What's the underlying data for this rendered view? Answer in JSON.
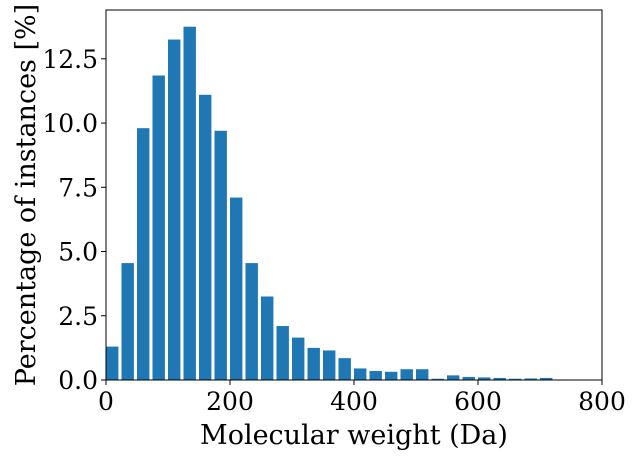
{
  "chart_data": {
    "type": "bar",
    "title": "",
    "xlabel": "Molecular weight (Da)",
    "ylabel": "Percentage of instances [%]",
    "xlim": [
      0,
      800
    ],
    "ylim": [
      0,
      14.4
    ],
    "xticks": [
      0,
      200,
      400,
      600,
      800
    ],
    "xtick_labels": [
      "0",
      "200",
      "400",
      "600",
      "800"
    ],
    "yticks": [
      0.0,
      2.5,
      5.0,
      7.5,
      10.0,
      12.5
    ],
    "ytick_labels": [
      "0.0",
      "2.5",
      "5.0",
      "7.5",
      "10.0",
      "12.5"
    ],
    "bar_width": 20,
    "color": "#1f77b4",
    "x": [
      10,
      35,
      60,
      85,
      110,
      135,
      160,
      185,
      210,
      235,
      260,
      285,
      310,
      335,
      360,
      385,
      410,
      435,
      460,
      485,
      510,
      535,
      560,
      585,
      610,
      635,
      660,
      685,
      710,
      735
    ],
    "values": [
      1.3,
      4.55,
      9.8,
      11.85,
      13.25,
      13.75,
      11.1,
      9.7,
      7.1,
      4.55,
      3.25,
      2.1,
      1.65,
      1.25,
      1.15,
      0.85,
      0.45,
      0.35,
      0.32,
      0.42,
      0.42,
      0.05,
      0.18,
      0.12,
      0.1,
      0.08,
      0.05,
      0.06,
      0.08,
      0.02
    ]
  }
}
